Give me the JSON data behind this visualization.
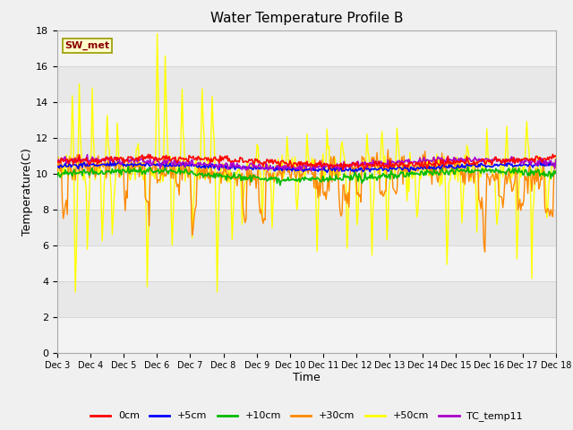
{
  "title": "Water Temperature Profile B",
  "xlabel": "Time",
  "ylabel": "Temperature(C)",
  "ylim": [
    0,
    18
  ],
  "yticks": [
    0,
    2,
    4,
    6,
    8,
    10,
    12,
    14,
    16,
    18
  ],
  "fig_facecolor": "#f0f0f0",
  "plot_bg_color": "#e8e8e8",
  "annotation_text": "SW_met",
  "annotation_bg": "#ffffcc",
  "annotation_fg": "#8b0000",
  "annotation_edge": "#999900",
  "series_colors": {
    "0cm": "#ff0000",
    "+5cm": "#0000ff",
    "+10cm": "#00bb00",
    "+30cm": "#ff8800",
    "+50cm": "#ffff00",
    "TC_temp11": "#aa00cc"
  },
  "x_tick_labels": [
    "Dec 3",
    "Dec 4",
    "Dec 5",
    "Dec 6",
    "Dec 7",
    "Dec 8",
    "Dec 9",
    "Dec 10",
    "Dec 11",
    "Dec 12",
    "Dec 13",
    "Dec 14",
    "Dec 15",
    "Dec 16",
    "Dec 17",
    "Dec 18"
  ]
}
